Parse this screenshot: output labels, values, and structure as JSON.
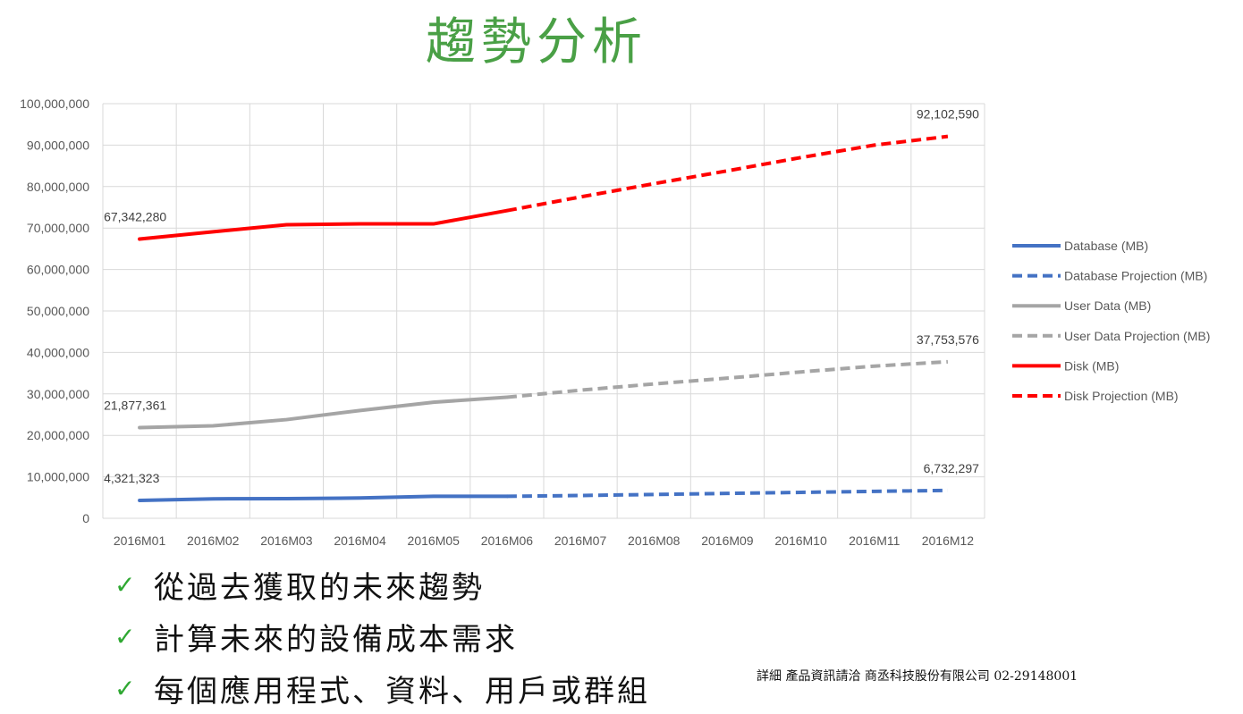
{
  "page": {
    "title": "趨勢分析",
    "bullets": [
      "從過去獲取的未來趨勢",
      "計算未來的設備成本需求",
      "每個應用程式、資料、用戶或群組"
    ],
    "footer": "詳細 產品資訊請洽 商丞科技股份有限公司 02-29148001",
    "check_symbol": "✓"
  },
  "colors": {
    "title": "#4aa046",
    "check": "#2fa832",
    "database": "#4472c4",
    "user_data": "#a5a5a5",
    "disk": "#ff0000"
  },
  "chart_data": {
    "type": "line",
    "title": "",
    "xlabel": "",
    "ylabel": "",
    "categories": [
      "2016M01",
      "2016M02",
      "2016M03",
      "2016M04",
      "2016M05",
      "2016M06",
      "2016M07",
      "2016M08",
      "2016M09",
      "2016M10",
      "2016M11",
      "2016M12"
    ],
    "ylim": [
      0,
      100000000
    ],
    "yticks": [
      0,
      10000000,
      20000000,
      30000000,
      40000000,
      50000000,
      60000000,
      70000000,
      80000000,
      90000000,
      100000000
    ],
    "ytick_labels": [
      "0",
      "10,000,000",
      "20,000,000",
      "30,000,000",
      "40,000,000",
      "50,000,000",
      "60,000,000",
      "70,000,000",
      "80,000,000",
      "90,000,000",
      "100,000,000"
    ],
    "grid": true,
    "legend_position": "right",
    "series": [
      {
        "name": "Database (MB)",
        "color": "#4472c4",
        "dash": false,
        "values": [
          4321323,
          4700000,
          4750000,
          4900000,
          5300000,
          5300000,
          null,
          null,
          null,
          null,
          null,
          null
        ]
      },
      {
        "name": "Database Projection (MB)",
        "color": "#4472c4",
        "dash": true,
        "values": [
          null,
          null,
          null,
          null,
          null,
          5300000,
          5500000,
          5750000,
          6000000,
          6250000,
          6500000,
          6732297
        ]
      },
      {
        "name": "User Data (MB)",
        "color": "#a5a5a5",
        "dash": false,
        "values": [
          21877361,
          22300000,
          23800000,
          26000000,
          28000000,
          29200000,
          null,
          null,
          null,
          null,
          null,
          null
        ]
      },
      {
        "name": "User Data Projection (MB)",
        "color": "#a5a5a5",
        "dash": true,
        "values": [
          null,
          null,
          null,
          null,
          null,
          29200000,
          30900000,
          32400000,
          33800000,
          35300000,
          36700000,
          37753576
        ]
      },
      {
        "name": "Disk (MB)",
        "color": "#ff0000",
        "dash": false,
        "values": [
          67342280,
          69100000,
          70800000,
          71000000,
          71000000,
          74200000,
          null,
          null,
          null,
          null,
          null,
          null
        ]
      },
      {
        "name": "Disk Projection (MB)",
        "color": "#ff0000",
        "dash": true,
        "values": [
          null,
          null,
          null,
          null,
          null,
          74200000,
          77500000,
          80700000,
          83800000,
          87000000,
          90000000,
          92102590
        ]
      }
    ],
    "data_labels": [
      {
        "series": "Disk (MB)",
        "index": 0,
        "text": "67,342,280",
        "anchor": "start"
      },
      {
        "series": "Disk Projection (MB)",
        "index": 11,
        "text": "92,102,590",
        "anchor": "end"
      },
      {
        "series": "User Data (MB)",
        "index": 0,
        "text": "21,877,361",
        "anchor": "start"
      },
      {
        "series": "User Data Projection (MB)",
        "index": 11,
        "text": "37,753,576",
        "anchor": "end"
      },
      {
        "series": "Database (MB)",
        "index": 0,
        "text": "4,321,323",
        "anchor": "start"
      },
      {
        "series": "Database Projection (MB)",
        "index": 11,
        "text": "6,732,297",
        "anchor": "end"
      }
    ]
  }
}
